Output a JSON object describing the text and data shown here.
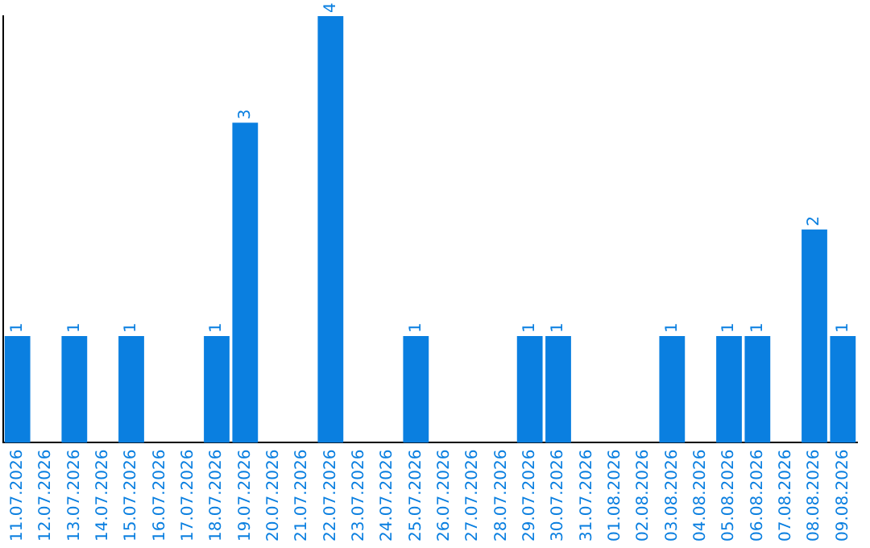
{
  "chart_data": {
    "type": "bar",
    "categories": [
      "11.07.2026",
      "12.07.2026",
      "13.07.2026",
      "14.07.2026",
      "15.07.2026",
      "16.07.2026",
      "17.07.2026",
      "18.07.2026",
      "19.07.2026",
      "20.07.2026",
      "21.07.2026",
      "22.07.2026",
      "23.07.2026",
      "24.07.2026",
      "25.07.2026",
      "26.07.2026",
      "27.07.2026",
      "28.07.2026",
      "29.07.2026",
      "30.07.2026",
      "31.07.2026",
      "01.08.2026",
      "02.08.2026",
      "03.08.2026",
      "04.08.2026",
      "05.08.2026",
      "06.08.2026",
      "07.08.2026",
      "08.08.2026",
      "09.08.2026"
    ],
    "values": [
      1,
      0,
      1,
      0,
      1,
      0,
      0,
      1,
      3,
      0,
      0,
      4,
      0,
      0,
      1,
      0,
      0,
      0,
      1,
      1,
      0,
      0,
      0,
      1,
      0,
      1,
      1,
      0,
      2,
      1
    ],
    "value_labels": [
      "1",
      null,
      "1",
      null,
      "1",
      null,
      null,
      "1",
      "3",
      null,
      null,
      "4",
      null,
      null,
      "1",
      null,
      null,
      null,
      "1",
      "1",
      null,
      null,
      null,
      "1",
      null,
      "1",
      "1",
      null,
      "2",
      "1"
    ],
    "color": "#0a7fe0",
    "grid": false,
    "legend": false
  }
}
